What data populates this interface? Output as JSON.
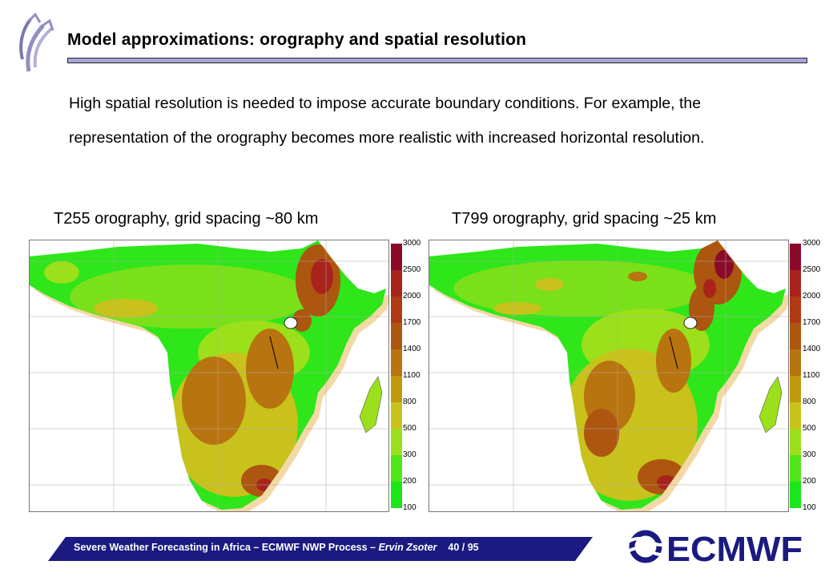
{
  "slide": {
    "title": "Model approximations: orography and spatial resolution",
    "body": "High spatial resolution is needed to impose accurate boundary conditions. For example, the representation of the orography becomes more realistic with increased horizontal resolution."
  },
  "maps": {
    "left_caption": "T255 orography, grid spacing ~80 km",
    "right_caption": "T799 orography, grid spacing ~25 km"
  },
  "colorbar": {
    "levels": [
      "3000",
      "2500",
      "2000",
      "1700",
      "1400",
      "1100",
      "800",
      "500",
      "300",
      "200",
      "100"
    ],
    "colors": [
      "#8b0a2a",
      "#a8231c",
      "#b03a12",
      "#ad5610",
      "#b8740f",
      "#c09a0c",
      "#c9c21c",
      "#9be01a",
      "#50e61a",
      "#1ae61a"
    ]
  },
  "footer": {
    "text": "Severe Weather Forecasting in Africa – ECMWF NWP Process – ",
    "author": "Ervin Zsoter",
    "page": "40 / 95"
  },
  "logo": {
    "text": "ECMWF",
    "color": "#1a1a80"
  }
}
